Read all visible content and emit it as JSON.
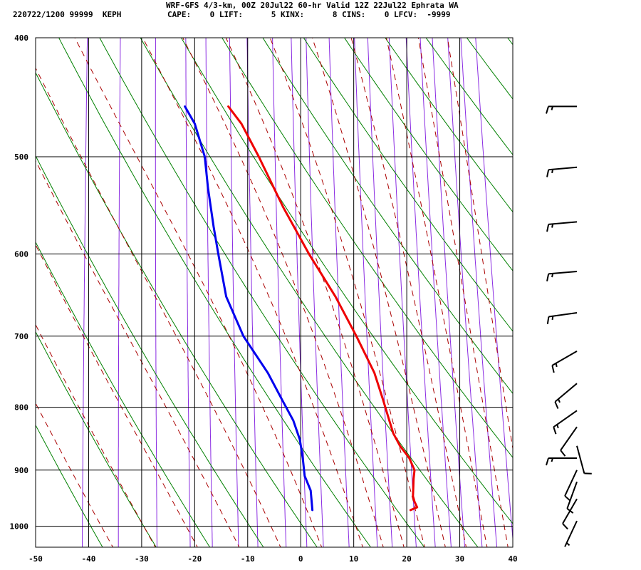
{
  "header": {
    "title": "WRF-GFS 4/3-km, 00Z 20Jul22 60-hr Valid 12Z 22Jul22 Ephrata WA",
    "station_line": "220722/1200 99999  KEPH",
    "indices": [
      {
        "label": "CAPE:",
        "value": "0"
      },
      {
        "label": "LIFT:",
        "value": "5"
      },
      {
        "label": "KINX:",
        "value": "8"
      },
      {
        "label": "CINS:",
        "value": "0"
      },
      {
        "label": "LFCV:",
        "value": "-9999"
      }
    ]
  },
  "chart_data": {
    "type": "skew-t",
    "x_ticks": [
      -50,
      -40,
      -30,
      -20,
      -10,
      0,
      10,
      20,
      30,
      40
    ],
    "y_ticks": [
      400,
      500,
      600,
      700,
      800,
      900,
      1000
    ],
    "xlim": [
      -50,
      40
    ],
    "ylim": [
      1040,
      400
    ],
    "y_scale": "log",
    "grid": true,
    "colors": {
      "temperature": "#ee0000",
      "dewpoint": "#0000ee",
      "dry_adiabat": "#008000",
      "moist_adiabat": "#aa0000",
      "mixing_ratio": "#8a2be2",
      "grid": "#000000"
    },
    "series": [
      {
        "key": "temperature",
        "points": [
          [
            970,
            20.0
          ],
          [
            965,
            21.2
          ],
          [
            955,
            20.6
          ],
          [
            945,
            20.2
          ],
          [
            930,
            20.1
          ],
          [
            915,
            20.0
          ],
          [
            900,
            20.0
          ],
          [
            880,
            18.8
          ],
          [
            860,
            16.8
          ],
          [
            840,
            15.3
          ],
          [
            820,
            14.3
          ],
          [
            790,
            12.8
          ],
          [
            750,
            10.6
          ],
          [
            700,
            6.5
          ],
          [
            650,
            1.8
          ],
          [
            600,
            -4.0
          ],
          [
            550,
            -9.7
          ],
          [
            500,
            -15.3
          ],
          [
            470,
            -19.2
          ],
          [
            455,
            -22.0
          ]
        ]
      },
      {
        "key": "dewpoint",
        "points": [
          [
            970,
            1.5
          ],
          [
            955,
            1.2
          ],
          [
            935,
            0.8
          ],
          [
            910,
            -0.6
          ],
          [
            880,
            -1.3
          ],
          [
            850,
            -2.2
          ],
          [
            820,
            -3.8
          ],
          [
            790,
            -6.2
          ],
          [
            750,
            -9.5
          ],
          [
            700,
            -14.8
          ],
          [
            650,
            -18.8
          ],
          [
            600,
            -21.1
          ],
          [
            570,
            -22.5
          ],
          [
            530,
            -24.3
          ],
          [
            500,
            -25.5
          ],
          [
            470,
            -28.0
          ],
          [
            455,
            -30.2
          ]
        ]
      }
    ],
    "winds": [
      {
        "p": 455,
        "dir": 270,
        "spd": 15
      },
      {
        "p": 510,
        "dir": 265,
        "spd": 15
      },
      {
        "p": 565,
        "dir": 265,
        "spd": 15
      },
      {
        "p": 620,
        "dir": 265,
        "spd": 15
      },
      {
        "p": 670,
        "dir": 262,
        "spd": 15
      },
      {
        "p": 720,
        "dir": 240,
        "spd": 15
      },
      {
        "p": 765,
        "dir": 230,
        "spd": 15
      },
      {
        "p": 805,
        "dir": 235,
        "spd": 15
      },
      {
        "p": 830,
        "dir": 215,
        "spd": 10
      },
      {
        "p": 860,
        "dir": 165,
        "spd": 10
      },
      {
        "p": 880,
        "dir": 270,
        "spd": 15
      },
      {
        "p": 900,
        "dir": 205,
        "spd": 10
      },
      {
        "p": 920,
        "dir": 200,
        "spd": 10
      },
      {
        "p": 950,
        "dir": 210,
        "spd": 10
      },
      {
        "p": 990,
        "dir": 205,
        "spd": 5
      }
    ]
  }
}
